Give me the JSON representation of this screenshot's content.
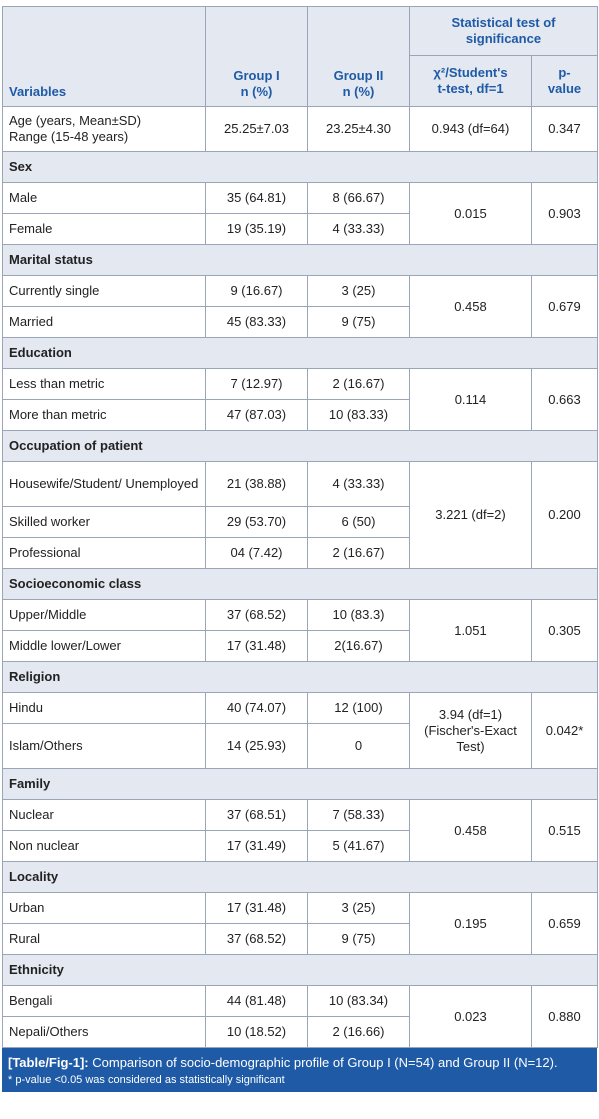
{
  "header": {
    "variables": "Variables",
    "group1": "Group I",
    "group1_unit": "n (%)",
    "group2": "Group II",
    "group2_unit": "n (%)",
    "stat_title": "Statistical test of significance",
    "test_col_line1": "χ²/Student's",
    "test_col_line2": "t-test, df=1",
    "p_col_line1": "p-",
    "p_col_line2": "value"
  },
  "age": {
    "line1": "Age (years, Mean±SD)",
    "line2": "Range (15-48 years)",
    "g1": "25.25±7.03",
    "g2": "23.25±4.30",
    "test": "0.943 (df=64)",
    "p": "0.347"
  },
  "sections": [
    {
      "title": "Sex",
      "test": "0.015",
      "p": "0.903",
      "rows": [
        {
          "label": "Male",
          "g1": "35 (64.81)",
          "g2": "8 (66.67)"
        },
        {
          "label": "Female",
          "g1": "19 (35.19)",
          "g2": "4 (33.33)"
        }
      ]
    },
    {
      "title": "Marital status",
      "test": "0.458",
      "p": "0.679",
      "rows": [
        {
          "label": "Currently single",
          "g1": "9 (16.67)",
          "g2": "3 (25)"
        },
        {
          "label": "Married",
          "g1": "45 (83.33)",
          "g2": "9 (75)"
        }
      ]
    },
    {
      "title": "Education",
      "test": "0.114",
      "p": "0.663",
      "rows": [
        {
          "label": "Less than metric",
          "g1": "7 (12.97)",
          "g2": "2 (16.67)"
        },
        {
          "label": "More than metric",
          "g1": "47 (87.03)",
          "g2": "10 (83.33)"
        }
      ]
    },
    {
      "title": "Occupation of patient",
      "test": "3.221 (df=2)",
      "p": "0.200",
      "rows": [
        {
          "label": "Housewife/Student/ Unemployed",
          "g1": "21 (38.88)",
          "g2": "4 (33.33)",
          "tall": true
        },
        {
          "label": "Skilled worker",
          "g1": "29 (53.70)",
          "g2": "6 (50)"
        },
        {
          "label": "Professional",
          "g1": "04 (7.42)",
          "g2": "2 (16.67)"
        }
      ]
    },
    {
      "title": "Socioeconomic class",
      "test": "1.051",
      "p": "0.305",
      "rows": [
        {
          "label": "Upper/Middle",
          "g1": "37 (68.52)",
          "g2": "10 (83.3)"
        },
        {
          "label": "Middle lower/Lower",
          "g1": "17 (31.48)",
          "g2": "2(16.67)"
        }
      ]
    },
    {
      "title": "Religion",
      "test": "3.94 (df=1) (Fischer's-Exact Test)",
      "p": "0.042*",
      "rows": [
        {
          "label": "Hindu",
          "g1": "40 (74.07)",
          "g2": "12 (100)"
        },
        {
          "label": "Islam/Others",
          "g1": "14 (25.93)",
          "g2": "0",
          "tall": true
        }
      ]
    },
    {
      "title": "Family",
      "test": "0.458",
      "p": "0.515",
      "rows": [
        {
          "label": "Nuclear",
          "g1": "37 (68.51)",
          "g2": "7 (58.33)"
        },
        {
          "label": "Non nuclear",
          "g1": "17 (31.49)",
          "g2": "5 (41.67)"
        }
      ]
    },
    {
      "title": "Locality",
      "test": "0.195",
      "p": "0.659",
      "rows": [
        {
          "label": "Urban",
          "g1": "17 (31.48)",
          "g2": "3 (25)"
        },
        {
          "label": "Rural",
          "g1": "37 (68.52)",
          "g2": "9 (75)"
        }
      ]
    },
    {
      "title": "Ethnicity",
      "test": "0.023",
      "p": "0.880",
      "rows": [
        {
          "label": "Bengali",
          "g1": "44 (81.48)",
          "g2": "10 (83.34)"
        },
        {
          "label": "Nepali/Others",
          "g1": "10 (18.52)",
          "g2": "2 (16.66)"
        }
      ]
    }
  ],
  "caption": {
    "label": "[Table/Fig-1]:",
    "text": " Comparison of socio-demographic profile of Group I (N=54) and Group II (N=12).",
    "note": "* p-value <0.05 was considered as statistically significant"
  },
  "colors": {
    "header_text": "#1f5aa6",
    "header_bg": "#e3e8f1",
    "caption_bg": "#1f5aa6",
    "border": "#9aa6b8"
  }
}
